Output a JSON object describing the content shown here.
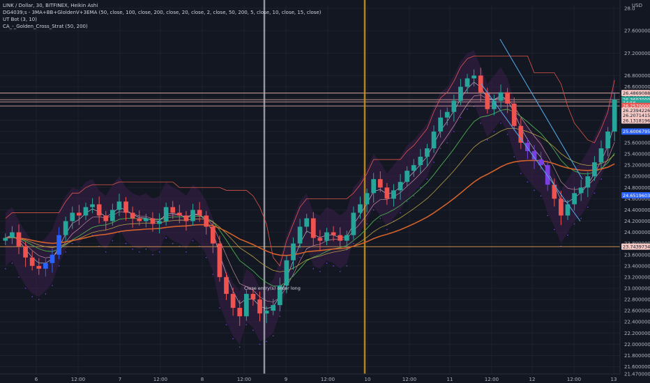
{
  "legend": {
    "line1": "LINK / Dollar, 30, BITFINEX, Heikin Ashi",
    "line2": "DG4039;s - 3MA+BB+GloldenV+3EMA (50, close, 100, close, 200, close, 20, close, 2, close, 50, 200, 5, close, 10, close, 15, close)",
    "line3": "UT Bot (3, 10)",
    "line4": "CA_-_Golden_Cross_Strat (50, 200)"
  },
  "currency": "USD",
  "annotation_text": "Close entry(s) order long",
  "colors": {
    "background": "#131722",
    "bull": "#26a69a",
    "bear": "#ef5350",
    "accent_blue": "#2962ff",
    "grid": "#1e222d",
    "vline1": "#b2b5be",
    "vline2": "#c8901a",
    "trendline": "#4fa3e0",
    "upper_band": "#e0554a",
    "ema_green": "#4caf50",
    "ema_orange": "#d4622a",
    "ema_yellow": "#b9a04a"
  },
  "chart_data": {
    "type": "candlestick",
    "symbol": "LINK / Dollar",
    "interval": "30",
    "exchange": "BITFINEX",
    "style": "Heikin Ashi",
    "x_tick_labels": [
      "6",
      "12:00",
      "7",
      "12:00",
      "8",
      "12:00",
      "9",
      "12:00",
      "10",
      "12:00",
      "11",
      "12:00",
      "12",
      "12:00",
      "13"
    ],
    "y_tick_labels": [
      "28.0",
      "27.60000000",
      "27.20000000",
      "26.80000000",
      "26.60000000",
      "26.40000000",
      "26.00000000",
      "25.80000000",
      "25.60000000",
      "25.40000000",
      "25.20000000",
      "25.00000000",
      "24.80000000",
      "24.60000000",
      "24.40000000",
      "24.20000000",
      "24.00000000",
      "23.80000000",
      "23.60000000",
      "23.40000000",
      "23.20000000",
      "23.00000000",
      "22.80000000",
      "22.60000000",
      "22.40000000",
      "22.20000000",
      "22.00000000",
      "21.80000000",
      "21.60000000",
      "21.47000000"
    ],
    "ylim": [
      21.47,
      28.05
    ],
    "price_tags": [
      {
        "value": "26.48690880",
        "price": 26.4869,
        "bg": "#f7c9c4",
        "fg": "#131722"
      },
      {
        "value": "26.36970000",
        "price": 26.3697,
        "bg": "#26a69a",
        "fg": "#ffffff"
      },
      {
        "value": "14:56",
        "price": 26.31,
        "bg": "#26a69a",
        "fg": "#ffffff"
      },
      {
        "value": "26.25700000",
        "price": 26.257,
        "bg": "#ef5350",
        "fg": "#ffffff"
      },
      {
        "value": "26.23942261",
        "price": 26.174,
        "bg": "#f7c9c4",
        "fg": "#131722"
      },
      {
        "value": "26.20714158",
        "price": 26.086,
        "bg": "#f7c9c4",
        "fg": "#131722"
      },
      {
        "value": "26.13181964",
        "price": 25.998,
        "bg": "#f7c9c4",
        "fg": "#131722"
      },
      {
        "value": "25.60067954",
        "price": 25.8,
        "bg": "#2962ff",
        "fg": "#ffffff"
      },
      {
        "value": "24.65196037",
        "price": 24.66,
        "bg": "#2962ff",
        "fg": "#ffffff"
      },
      {
        "value": "23.74397348",
        "price": 23.744,
        "bg": "#f7c9c4",
        "fg": "#131722"
      }
    ],
    "horizontal_levels": [
      26.4869,
      26.3697,
      26.33,
      26.257,
      23.744
    ],
    "candles_close": [
      23.9,
      24.0,
      23.75,
      23.55,
      23.4,
      23.35,
      23.45,
      23.6,
      23.95,
      24.2,
      24.35,
      24.3,
      24.45,
      24.5,
      24.3,
      24.2,
      24.4,
      24.55,
      24.35,
      24.25,
      24.2,
      24.25,
      24.15,
      24.2,
      24.45,
      24.35,
      24.3,
      24.2,
      24.4,
      24.3,
      24.1,
      23.8,
      23.2,
      22.9,
      22.65,
      22.5,
      22.9,
      22.8,
      22.55,
      22.6,
      22.7,
      23.05,
      23.5,
      23.8,
      24.1,
      24.25,
      23.9,
      23.85,
      24.0,
      23.95,
      23.85,
      23.95,
      24.35,
      24.5,
      24.7,
      24.95,
      24.8,
      24.6,
      24.75,
      24.9,
      25.1,
      25.2,
      25.35,
      25.5,
      25.8,
      26.05,
      26.15,
      26.35,
      26.6,
      26.75,
      26.8,
      26.5,
      26.2,
      26.35,
      26.5,
      26.3,
      25.9,
      25.6,
      25.45,
      25.3,
      25.2,
      24.85,
      24.6,
      24.3,
      24.5,
      24.7,
      24.8,
      25.0,
      25.25,
      25.5,
      25.8,
      26.37
    ],
    "annotations": [
      "Close entry(s) order long"
    ],
    "grid": true
  }
}
